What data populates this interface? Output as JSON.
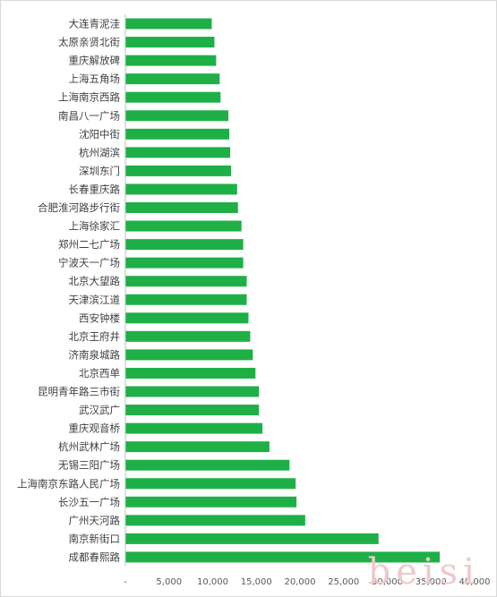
{
  "chart_data": {
    "type": "bar",
    "orientation": "horizontal",
    "categories": [
      "大连青泥洼",
      "太原亲贤北街",
      "重庆解放碑",
      "上海五角场",
      "上海南京西路",
      "南昌八一广场",
      "沈阳中街",
      "杭州湖滨",
      "深圳东门",
      "长春重庆路",
      "合肥淮河路步行街",
      "上海徐家汇",
      "郑州二七广场",
      "宁波天一广场",
      "北京大望路",
      "天津滨江道",
      "西安钟楼",
      "北京王府井",
      "济南泉城路",
      "北京西单",
      "昆明青年路三市街",
      "武汉武广",
      "重庆观音桥",
      "杭州武林广场",
      "无锡三阳广场",
      "上海南京东路人民广场",
      "长沙五一广场",
      "广州天河路",
      "南京新街口",
      "成都春熙路"
    ],
    "values": [
      9900,
      10200,
      10400,
      10800,
      10900,
      11800,
      11900,
      12000,
      12100,
      12800,
      12900,
      13300,
      13500,
      13500,
      13900,
      13900,
      14100,
      14300,
      14600,
      14900,
      15300,
      15300,
      15700,
      16500,
      18800,
      19500,
      19600,
      20600,
      29000,
      36000
    ],
    "xlim": [
      0,
      40000
    ],
    "xticks": [
      "-",
      "5,000",
      "10,000",
      "15,000",
      "20,000",
      "25,000",
      "30,000",
      "35,000",
      "40,000"
    ],
    "grid": false,
    "bar_color": "#1eb046",
    "title": "",
    "xlabel": "",
    "ylabel": ""
  },
  "watermark": "beisi"
}
